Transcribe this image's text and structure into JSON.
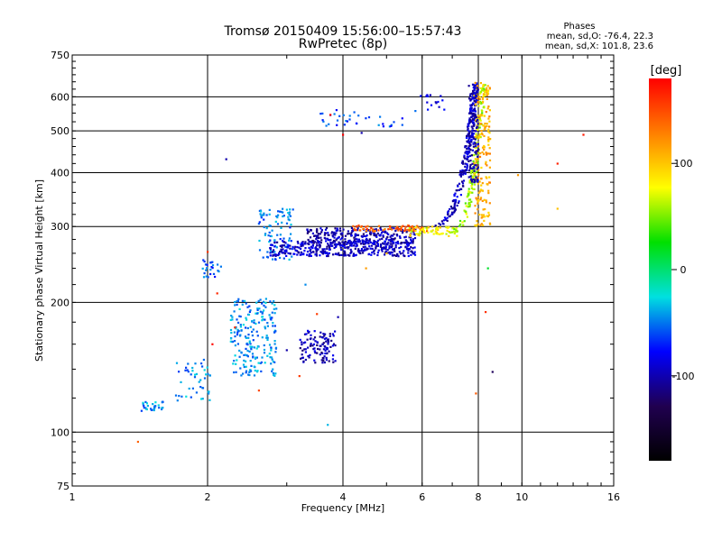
{
  "chart_data": {
    "type": "scatter",
    "title": "Tromsø 20150409 15:56:00–15:57:43",
    "subtitle": "RwPretec (8p)",
    "xlabel": "Frequency [MHz]",
    "ylabel": "Stationary phase Virtual Height [km]",
    "x_scale": "log",
    "y_scale": "log",
    "xlim": [
      1,
      16
    ],
    "ylim": [
      75,
      750
    ],
    "x_ticks": [
      1,
      2,
      4,
      6,
      8,
      10,
      16
    ],
    "y_ticks": [
      75,
      100,
      200,
      300,
      400,
      500,
      600,
      750
    ],
    "grid": true,
    "stats": {
      "heading": "Phases",
      "o_line": "mean, sd,O: -76.4, 22.3",
      "x_line": "mean, sd,X: 101.8, 23.6"
    },
    "colorbar": {
      "label": "[deg]",
      "range": [
        -180,
        180
      ],
      "ticks": [
        100,
        0,
        -100
      ],
      "colors": [
        "#ff0000",
        "#ff7f00",
        "#ffff00",
        "#00e000",
        "#00e0e0",
        "#0000ff",
        "#200050",
        "#000000"
      ]
    },
    "traces": [
      {
        "f": [
          1.42,
          1.6
        ],
        "h": [
          112,
          118
        ],
        "phase": -45,
        "n": 30
      },
      {
        "f": [
          1.7,
          2.05
        ],
        "h": [
          118,
          148
        ],
        "phase": -45,
        "n": 45
      },
      {
        "f": [
          1.95,
          2.15
        ],
        "h": [
          228,
          252
        ],
        "phase": -55,
        "n": 25
      },
      {
        "f": [
          2.25,
          2.85
        ],
        "h": [
          135,
          205
        ],
        "phase": -45,
        "n": 220
      },
      {
        "f": [
          2.6,
          3.1
        ],
        "h": [
          250,
          330
        ],
        "phase": -50,
        "n": 90
      },
      {
        "f": [
          2.75,
          5.8
        ],
        "h": [
          256,
          278
        ],
        "phase": -95,
        "n": 380
      },
      {
        "f": [
          3.3,
          5.8
        ],
        "h": [
          272,
          298
        ],
        "phase": -100,
        "n": 260
      },
      {
        "f": [
          4.2,
          6.2
        ],
        "h": [
          292,
          302
        ],
        "phase": 140,
        "n": 70
      },
      {
        "f": [
          5.6,
          7.2
        ],
        "h": [
          285,
          300
        ],
        "phase": 80,
        "n": 60
      },
      {
        "f": [
          3.2,
          3.85
        ],
        "h": [
          145,
          172
        ],
        "phase": -100,
        "n": 110
      },
      {
        "f": [
          3.4,
          5.8
        ],
        "h": [
          510,
          560
        ],
        "phase": -60,
        "n": 35
      },
      {
        "f": [
          5.8,
          6.8
        ],
        "h": [
          560,
          615
        ],
        "phase": -90,
        "n": 15
      }
    ],
    "vertical_traces": [
      {
        "f": [
          6.2,
          7.9
        ],
        "h": [
          300,
          650
        ],
        "phase": -95,
        "n": 230,
        "curve": "x-rise"
      },
      {
        "f": [
          6.8,
          8.2
        ],
        "h": [
          290,
          640
        ],
        "phase": 60,
        "n": 170,
        "curve": "x-rise"
      },
      {
        "f": [
          7.8,
          8.5
        ],
        "h": [
          300,
          650
        ],
        "phase": 110,
        "n": 180,
        "curve": "vertical"
      },
      {
        "f": [
          7.6,
          8.0
        ],
        "h": [
          380,
          640
        ],
        "phase": -100,
        "n": 120,
        "curve": "vertical"
      }
    ],
    "scattered_points": [
      {
        "f": 1.4,
        "h": 95,
        "phase": 150
      },
      {
        "f": 3.7,
        "h": 104,
        "phase": -40
      },
      {
        "f": 2.2,
        "h": 430,
        "phase": -100
      },
      {
        "f": 3.75,
        "h": 545,
        "phase": 170
      },
      {
        "f": 4.0,
        "h": 490,
        "phase": 175
      },
      {
        "f": 4.4,
        "h": 495,
        "phase": -90
      },
      {
        "f": 3.9,
        "h": 185,
        "phase": -100
      },
      {
        "f": 3.5,
        "h": 188,
        "phase": 160
      },
      {
        "f": 3.3,
        "h": 220,
        "phase": -60
      },
      {
        "f": 2.0,
        "h": 262,
        "phase": 160
      },
      {
        "f": 2.1,
        "h": 210,
        "phase": 175
      },
      {
        "f": 2.05,
        "h": 160,
        "phase": 180
      },
      {
        "f": 2.3,
        "h": 175,
        "phase": 180
      },
      {
        "f": 2.6,
        "h": 125,
        "phase": 170
      },
      {
        "f": 3.0,
        "h": 155,
        "phase": -120
      },
      {
        "f": 3.2,
        "h": 135,
        "phase": 175
      },
      {
        "f": 4.5,
        "h": 240,
        "phase": 130
      },
      {
        "f": 5.0,
        "h": 260,
        "phase": 120
      },
      {
        "f": 8.4,
        "h": 240,
        "phase": 20
      },
      {
        "f": 8.3,
        "h": 190,
        "phase": 180
      },
      {
        "f": 8.6,
        "h": 138,
        "phase": -130
      },
      {
        "f": 7.9,
        "h": 123,
        "phase": 130
      },
      {
        "f": 9.8,
        "h": 395,
        "phase": 100
      },
      {
        "f": 12.0,
        "h": 420,
        "phase": 150
      },
      {
        "f": 13.7,
        "h": 490,
        "phase": 150
      },
      {
        "f": 12.0,
        "h": 330,
        "phase": 110
      }
    ]
  }
}
